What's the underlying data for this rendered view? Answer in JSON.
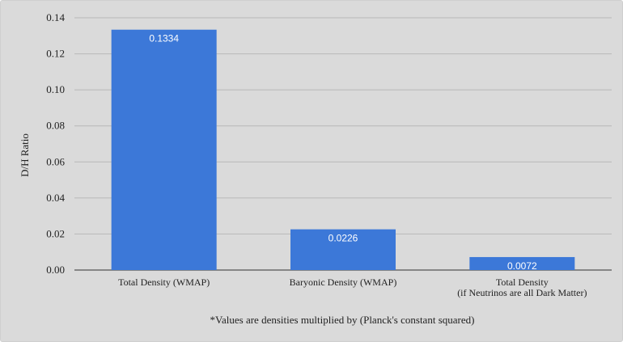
{
  "chart_data": {
    "type": "bar",
    "categories": [
      [
        "Total Density (WMAP)"
      ],
      [
        "Baryonic Density (WMAP)"
      ],
      [
        "Total Density",
        "(if Neutrinos are all Dark Matter)"
      ]
    ],
    "values": [
      0.1334,
      0.0226,
      0.0072
    ],
    "data_labels": [
      "0.1334",
      "0.0226",
      "0.0072"
    ],
    "ylabel": "D/H Ratio",
    "xlabel": "",
    "ylim": [
      0,
      0.14
    ],
    "yticks": [
      0.0,
      0.02,
      0.04,
      0.06,
      0.08,
      0.1,
      0.12,
      0.14
    ],
    "ytick_labels": [
      "0.00",
      "0.02",
      "0.04",
      "0.06",
      "0.08",
      "0.10",
      "0.12",
      "0.14"
    ],
    "footnote": "*Values are densities multiplied by (Planck's constant squared)",
    "grid": true,
    "legend": "none",
    "colors": {
      "bar": "#3c78d8",
      "grid": "#b8b8b8",
      "background": "#dadada"
    }
  }
}
